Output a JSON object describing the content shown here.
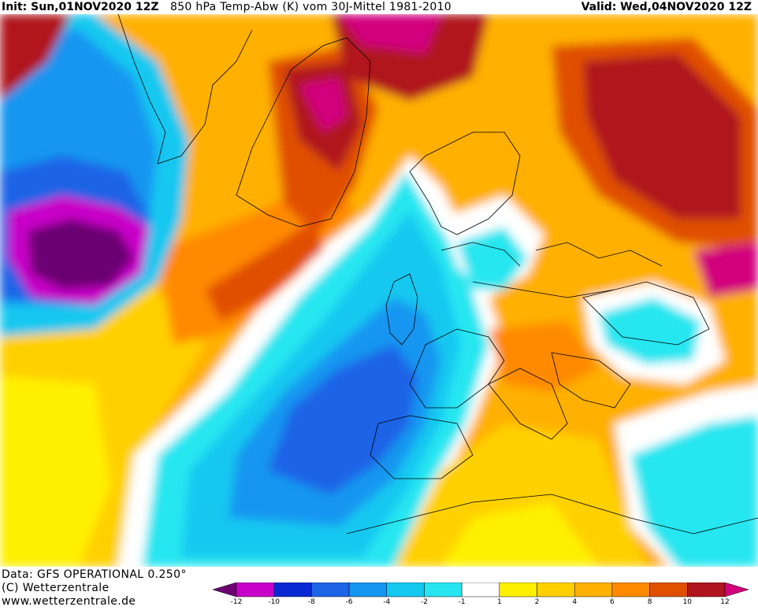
{
  "header": {
    "init": "Init: Sun,01NOV2020 12Z",
    "title": "850 hPa Temp-Abw (K) vom 30J-Mittel 1981-2010",
    "valid": "Valid: Wed,04NOV2020 12Z"
  },
  "footer": {
    "data_line": "Data: GFS OPERATIONAL 0.250°",
    "copyright": "(C) Wetterzentrale",
    "url": "www.wetterzentrale.de"
  },
  "colorbar": {
    "labels": [
      "-12",
      "-10",
      "-8",
      "-6",
      "-4",
      "-2",
      "-1",
      "1",
      "2",
      "4",
      "6",
      "8",
      "10",
      "12"
    ],
    "colors": [
      "#6b0071",
      "#c800c8",
      "#0a28d2",
      "#1e64e6",
      "#1496f0",
      "#14c8f0",
      "#28e6f0",
      "#ffffff",
      "#fff000",
      "#ffd000",
      "#ffb000",
      "#ff8a00",
      "#e05000",
      "#b0141e",
      "#d2007d"
    ]
  },
  "map": {
    "projection": "Europe / North Atlantic",
    "contour_lines": "coastlines and country borders"
  }
}
